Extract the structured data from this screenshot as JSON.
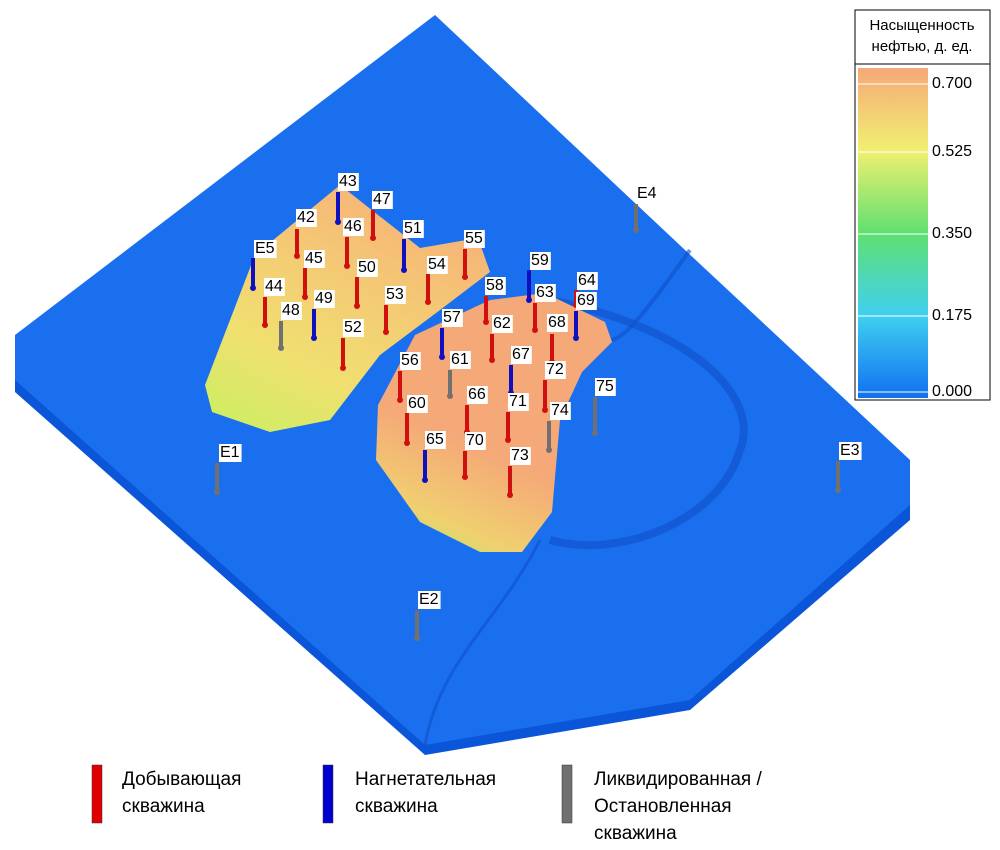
{
  "colorbar": {
    "title": [
      "Насыщенность",
      "нефтью, д. ед."
    ],
    "ticks": [
      "0.700",
      "0.525",
      "0.350",
      "0.175",
      "0.000"
    ]
  },
  "wells": [
    {
      "label": "43",
      "color": "#1010c0"
    },
    {
      "label": "42",
      "color": "#d01010"
    },
    {
      "label": "47",
      "color": "#d01010"
    },
    {
      "label": "46",
      "color": "#d01010"
    },
    {
      "label": "51",
      "color": "#1010c0"
    },
    {
      "label": "55",
      "color": "#d01010"
    },
    {
      "label": "E5",
      "color": "#1010c0"
    },
    {
      "label": "45",
      "color": "#d01010"
    },
    {
      "label": "50",
      "color": "#d01010"
    },
    {
      "label": "54",
      "color": "#d01010"
    },
    {
      "label": "59",
      "color": "#1010c0"
    },
    {
      "label": "64",
      "color": "#d01010"
    },
    {
      "label": "44",
      "color": "#d01010"
    },
    {
      "label": "58",
      "color": "#d01010"
    },
    {
      "label": "63",
      "color": "#d01010"
    },
    {
      "label": "69",
      "color": "#1010c0"
    },
    {
      "label": "53",
      "color": "#d01010"
    },
    {
      "label": "49",
      "color": "#1010c0"
    },
    {
      "label": "48",
      "color": "#707070"
    },
    {
      "label": "57",
      "color": "#1010c0"
    },
    {
      "label": "62",
      "color": "#d01010"
    },
    {
      "label": "68",
      "color": "#d01010"
    },
    {
      "label": "52",
      "color": "#d01010"
    },
    {
      "label": "67",
      "color": "#1010c0"
    },
    {
      "label": "56",
      "color": "#d01010"
    },
    {
      "label": "61",
      "color": "#707070"
    },
    {
      "label": "72",
      "color": "#d01010"
    },
    {
      "label": "75",
      "color": "#707070"
    },
    {
      "label": "66",
      "color": "#d01010"
    },
    {
      "label": "60",
      "color": "#d01010"
    },
    {
      "label": "71",
      "color": "#d01010"
    },
    {
      "label": "74",
      "color": "#707070"
    },
    {
      "label": "65",
      "color": "#1010c0"
    },
    {
      "label": "70",
      "color": "#d01010"
    },
    {
      "label": "73",
      "color": "#d01010"
    },
    {
      "label": "E1",
      "color": "#707070"
    },
    {
      "label": "E2",
      "color": "#707070"
    },
    {
      "label": "E3",
      "color": "#707070"
    },
    {
      "label": "E4",
      "color": "#707070"
    }
  ],
  "legend": [
    {
      "color": "#e00000",
      "lines": [
        "Добывающая",
        "скважина"
      ]
    },
    {
      "color": "#0000d0",
      "lines": [
        "Нагнетательная",
        "скважина"
      ]
    },
    {
      "color": "#707070",
      "lines": [
        "Ликвидированная /",
        "Остановленная",
        "скважина"
      ]
    }
  ]
}
